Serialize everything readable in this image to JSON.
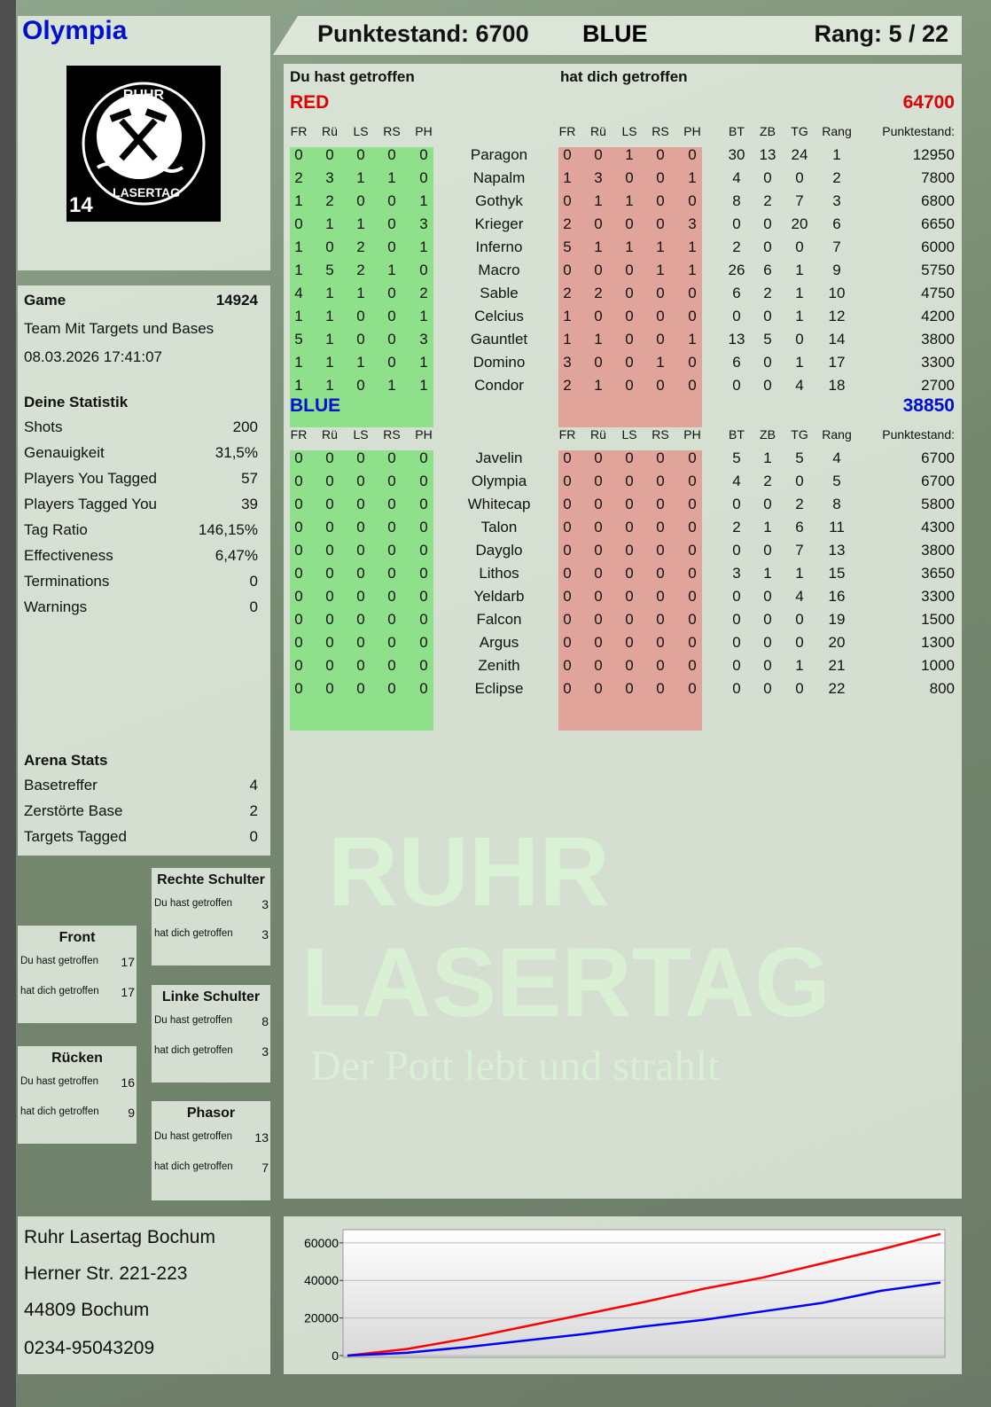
{
  "player": {
    "name": "Olympia",
    "logo_text": "RUHR LASERTAG",
    "logo_badge": "14"
  },
  "header": {
    "score_label": "Punktestand: 6700",
    "team": "BLUE",
    "rank_label": "Rang: 5 / 22"
  },
  "game": {
    "label": "Game",
    "id": "14924",
    "mode": "Team Mit Targets und Bases",
    "datetime": "08.03.2026 17:41:07"
  },
  "stats": {
    "title": "Deine Statistik",
    "items": [
      {
        "label": "Shots",
        "value": "200"
      },
      {
        "label": "Genauigkeit",
        "value": "31,5%"
      },
      {
        "label": "Players You Tagged",
        "value": "57"
      },
      {
        "label": "Players Tagged You",
        "value": "39"
      },
      {
        "label": "Tag Ratio",
        "value": "146,15%"
      },
      {
        "label": "Effectiveness",
        "value": "6,47%"
      },
      {
        "label": "Terminations",
        "value": "0"
      },
      {
        "label": "Warnings",
        "value": "0"
      }
    ]
  },
  "arena": {
    "title": "Arena Stats",
    "items": [
      {
        "label": "Basetreffer",
        "value": "4"
      },
      {
        "label": "Zerstörte Base",
        "value": "2"
      },
      {
        "label": "Targets Tagged",
        "value": "0"
      }
    ]
  },
  "zones": [
    {
      "title": "Rechte Schulter",
      "hit_label": "Du hast getroffen",
      "hit": "3",
      "got_label": "hat dich getroffen",
      "got": "3"
    },
    {
      "title": "Front",
      "hit_label": "Du hast getroffen",
      "hit": "17",
      "got_label": "hat dich getroffen",
      "got": "17"
    },
    {
      "title": "Linke Schulter",
      "hit_label": "Du hast getroffen",
      "hit": "8",
      "got_label": "hat dich getroffen",
      "got": "3"
    },
    {
      "title": "Rücken",
      "hit_label": "Du hast getroffen",
      "hit": "16",
      "got_label": "hat dich getroffen",
      "got": "9"
    },
    {
      "title": "Phasor",
      "hit_label": "Du hast getroffen",
      "hit": "13",
      "got_label": "hat dich getroffen",
      "got": "7"
    }
  ],
  "main": {
    "you_hit_label": "Du hast getroffen",
    "hit_you_label": "hat dich getroffen",
    "columns": {
      "hit": [
        "FR",
        "Rü",
        "LS",
        "RS",
        "PH"
      ],
      "got": [
        "FR",
        "Rü",
        "LS",
        "RS",
        "PH"
      ],
      "extra": [
        "BT",
        "ZB",
        "TG",
        "Rang"
      ],
      "score": "Punktestand:"
    },
    "teams": [
      {
        "name": "RED",
        "total": "64700",
        "color": "#e00000",
        "players": [
          {
            "name": "Paragon",
            "hit": [
              0,
              0,
              0,
              0,
              0
            ],
            "got": [
              0,
              0,
              1,
              0,
              0
            ],
            "extra": [
              30,
              13,
              24,
              1
            ],
            "score": 12950
          },
          {
            "name": "Napalm",
            "hit": [
              2,
              3,
              1,
              1,
              0
            ],
            "got": [
              1,
              3,
              0,
              0,
              1
            ],
            "extra": [
              4,
              0,
              0,
              2
            ],
            "score": 7800
          },
          {
            "name": "Gothyk",
            "hit": [
              1,
              2,
              0,
              0,
              1
            ],
            "got": [
              0,
              1,
              1,
              0,
              0
            ],
            "extra": [
              8,
              2,
              7,
              3
            ],
            "score": 6800
          },
          {
            "name": "Krieger",
            "hit": [
              0,
              1,
              1,
              0,
              3
            ],
            "got": [
              2,
              0,
              0,
              0,
              3
            ],
            "extra": [
              0,
              0,
              20,
              6
            ],
            "score": 6650
          },
          {
            "name": "Inferno",
            "hit": [
              1,
              0,
              2,
              0,
              1
            ],
            "got": [
              5,
              1,
              1,
              1,
              1
            ],
            "extra": [
              2,
              0,
              0,
              7
            ],
            "score": 6000
          },
          {
            "name": "Macro",
            "hit": [
              1,
              5,
              2,
              1,
              0
            ],
            "got": [
              0,
              0,
              0,
              1,
              1
            ],
            "extra": [
              26,
              6,
              1,
              9
            ],
            "score": 5750
          },
          {
            "name": "Sable",
            "hit": [
              4,
              1,
              1,
              0,
              2
            ],
            "got": [
              2,
              2,
              0,
              0,
              0
            ],
            "extra": [
              6,
              2,
              1,
              10
            ],
            "score": 4750
          },
          {
            "name": "Celcius",
            "hit": [
              1,
              1,
              0,
              0,
              1
            ],
            "got": [
              1,
              0,
              0,
              0,
              0
            ],
            "extra": [
              0,
              0,
              1,
              12
            ],
            "score": 4200
          },
          {
            "name": "Gauntlet",
            "hit": [
              5,
              1,
              0,
              0,
              3
            ],
            "got": [
              1,
              1,
              0,
              0,
              1
            ],
            "extra": [
              13,
              5,
              0,
              14
            ],
            "score": 3800
          },
          {
            "name": "Domino",
            "hit": [
              1,
              1,
              1,
              0,
              1
            ],
            "got": [
              3,
              0,
              0,
              1,
              0
            ],
            "extra": [
              6,
              0,
              1,
              17
            ],
            "score": 3300
          },
          {
            "name": "Condor",
            "hit": [
              1,
              1,
              0,
              1,
              1
            ],
            "got": [
              2,
              1,
              0,
              0,
              0
            ],
            "extra": [
              0,
              0,
              4,
              18
            ],
            "score": 2700
          }
        ]
      },
      {
        "name": "BLUE",
        "total": "38850",
        "color": "#0010d0",
        "players": [
          {
            "name": "Javelin",
            "hit": [
              0,
              0,
              0,
              0,
              0
            ],
            "got": [
              0,
              0,
              0,
              0,
              0
            ],
            "extra": [
              5,
              1,
              5,
              4
            ],
            "score": 6700
          },
          {
            "name": "Olympia",
            "hit": [
              0,
              0,
              0,
              0,
              0
            ],
            "got": [
              0,
              0,
              0,
              0,
              0
            ],
            "extra": [
              4,
              2,
              0,
              5
            ],
            "score": 6700
          },
          {
            "name": "Whitecap",
            "hit": [
              0,
              0,
              0,
              0,
              0
            ],
            "got": [
              0,
              0,
              0,
              0,
              0
            ],
            "extra": [
              0,
              0,
              2,
              8
            ],
            "score": 5800
          },
          {
            "name": "Talon",
            "hit": [
              0,
              0,
              0,
              0,
              0
            ],
            "got": [
              0,
              0,
              0,
              0,
              0
            ],
            "extra": [
              2,
              1,
              6,
              11
            ],
            "score": 4300
          },
          {
            "name": "Dayglo",
            "hit": [
              0,
              0,
              0,
              0,
              0
            ],
            "got": [
              0,
              0,
              0,
              0,
              0
            ],
            "extra": [
              0,
              0,
              7,
              13
            ],
            "score": 3800
          },
          {
            "name": "Lithos",
            "hit": [
              0,
              0,
              0,
              0,
              0
            ],
            "got": [
              0,
              0,
              0,
              0,
              0
            ],
            "extra": [
              3,
              1,
              1,
              15
            ],
            "score": 3650
          },
          {
            "name": "Yeldarb",
            "hit": [
              0,
              0,
              0,
              0,
              0
            ],
            "got": [
              0,
              0,
              0,
              0,
              0
            ],
            "extra": [
              0,
              0,
              4,
              16
            ],
            "score": 3300
          },
          {
            "name": "Falcon",
            "hit": [
              0,
              0,
              0,
              0,
              0
            ],
            "got": [
              0,
              0,
              0,
              0,
              0
            ],
            "extra": [
              0,
              0,
              0,
              19
            ],
            "score": 1500
          },
          {
            "name": "Argus",
            "hit": [
              0,
              0,
              0,
              0,
              0
            ],
            "got": [
              0,
              0,
              0,
              0,
              0
            ],
            "extra": [
              0,
              0,
              0,
              20
            ],
            "score": 1300
          },
          {
            "name": "Zenith",
            "hit": [
              0,
              0,
              0,
              0,
              0
            ],
            "got": [
              0,
              0,
              0,
              0,
              0
            ],
            "extra": [
              0,
              0,
              1,
              21
            ],
            "score": 1000
          },
          {
            "name": "Eclipse",
            "hit": [
              0,
              0,
              0,
              0,
              0
            ],
            "got": [
              0,
              0,
              0,
              0,
              0
            ],
            "extra": [
              0,
              0,
              0,
              22
            ],
            "score": 800
          }
        ]
      }
    ]
  },
  "address": {
    "lines": [
      "Ruhr Lasertag Bochum",
      "Herner Str. 221-223",
      "44809 Bochum",
      "0234-95043209"
    ]
  },
  "watermark": {
    "line1": "RUHR",
    "line2": "LASERTAG",
    "line3": "Der Pott lebt und strahlt"
  },
  "colors": {
    "hit_bg": "#8fe08a",
    "got_bg": "#e0a49a",
    "red": "#e00000",
    "blue": "#0010d0"
  },
  "chart_data": {
    "type": "line",
    "ylim": [
      0,
      67000
    ],
    "yticks": [
      0,
      20000,
      40000,
      60000
    ],
    "grid": true,
    "x": [
      0,
      1,
      2,
      3,
      4,
      5,
      6,
      7,
      8,
      9,
      10
    ],
    "series": [
      {
        "color": "#ff0000",
        "values": [
          0,
          3500,
          9000,
          15500,
          22000,
          28500,
          35500,
          41500,
          49000,
          56500,
          64700
        ]
      },
      {
        "color": "#0000ff",
        "values": [
          0,
          1500,
          4500,
          8000,
          11500,
          15500,
          19000,
          23500,
          28000,
          34500,
          38850
        ]
      }
    ]
  }
}
